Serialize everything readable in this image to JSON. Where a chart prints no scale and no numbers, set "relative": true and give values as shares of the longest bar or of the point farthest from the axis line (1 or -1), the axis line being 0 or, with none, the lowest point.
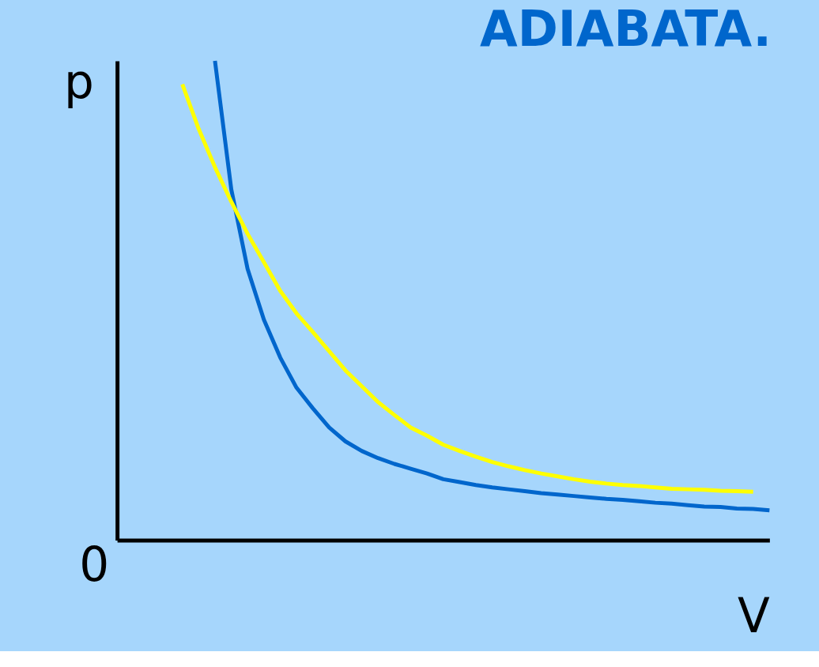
{
  "chart_data": {
    "type": "line",
    "title": "ADIABATA.",
    "xlabel": "V",
    "ylabel": "p",
    "annotations": [
      "0"
    ],
    "relative": true,
    "tick_labels": false,
    "grid": false,
    "legend": false,
    "line_style": "solid",
    "marker": "none",
    "categories": [
      null,
      null,
      null,
      null,
      null,
      null,
      null,
      null,
      null,
      null,
      null,
      null,
      null,
      null,
      null,
      null,
      null,
      null,
      null,
      null,
      null,
      null,
      null,
      null,
      null,
      null,
      null,
      null,
      null,
      null,
      null,
      null,
      null,
      null,
      null,
      null,
      null,
      null,
      null,
      null,
      null
    ],
    "series": [
      {
        "color": "#0066cc",
        "values": [
          null,
          null,
          null,
          null,
          null,
          null,
          1,
          0.732,
          0.566,
          0.46,
          0.381,
          0.318,
          0.275,
          0.235,
          0.206,
          0.186,
          0.171,
          0.159,
          0.149,
          0.139,
          0.127,
          0.121,
          0.115,
          0.11,
          0.106,
          0.102,
          0.098,
          0.095,
          0.092,
          0.089,
          0.086,
          0.084,
          0.081,
          0.078,
          0.076,
          0.073,
          0.07,
          0.069,
          0.066,
          0.065,
          0.062
        ]
      },
      {
        "color": "#ffff00",
        "values": [
          null,
          null,
          null,
          null,
          0.951,
          0.858,
          0.778,
          0.706,
          0.639,
          0.58,
          0.52,
          0.473,
          0.434,
          0.394,
          0.354,
          0.321,
          0.288,
          0.261,
          0.235,
          0.218,
          0.199,
          0.186,
          0.174,
          0.163,
          0.154,
          0.146,
          0.139,
          0.133,
          0.127,
          0.122,
          0.118,
          0.115,
          0.113,
          0.11,
          0.107,
          0.106,
          0.105,
          0.103,
          0.102,
          0.101,
          null
        ]
      }
    ]
  }
}
